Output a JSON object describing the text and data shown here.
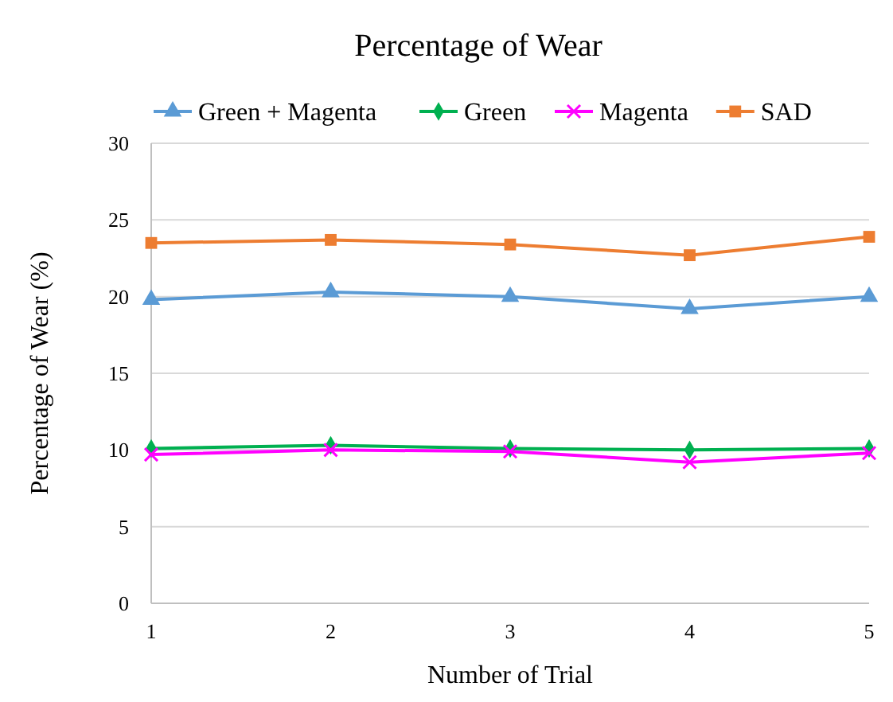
{
  "chart_data": {
    "type": "line",
    "title": "Percentage of Wear",
    "xlabel": "Number of Trial",
    "ylabel": "Percentage of Wear (%)",
    "x": [
      1,
      2,
      3,
      4,
      5
    ],
    "xlim": [
      1,
      5
    ],
    "xticks": [
      1,
      2,
      3,
      4,
      5
    ],
    "ylim": [
      0,
      30
    ],
    "yticks": [
      0,
      5,
      10,
      15,
      20,
      25,
      30
    ],
    "grid": "y",
    "legend": "top",
    "series": [
      {
        "name": "Green + Magenta",
        "color": "#5b9bd5",
        "marker": "triangle",
        "values": [
          19.8,
          20.3,
          20.0,
          19.2,
          20.0
        ]
      },
      {
        "name": "Green",
        "color": "#00b050",
        "marker": "diamond",
        "values": [
          10.1,
          10.3,
          10.1,
          10.0,
          10.1
        ]
      },
      {
        "name": "Magenta",
        "color": "#ff00ff",
        "marker": "cross",
        "values": [
          9.7,
          10.0,
          9.9,
          9.2,
          9.8
        ]
      },
      {
        "name": "SAD",
        "color": "#ed7d31",
        "marker": "square",
        "values": [
          23.5,
          23.7,
          23.4,
          22.7,
          23.9
        ]
      }
    ]
  }
}
